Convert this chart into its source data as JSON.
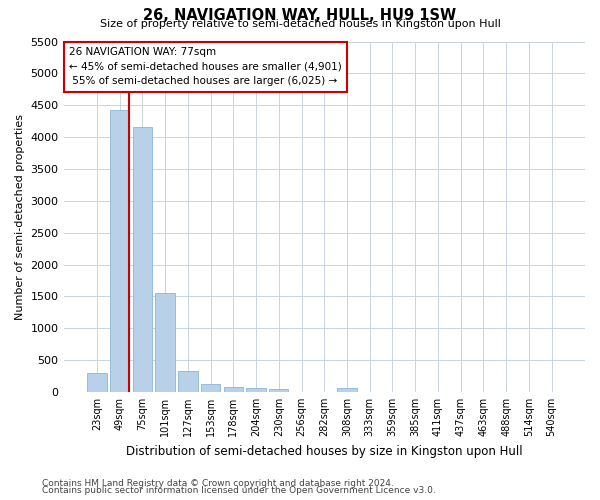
{
  "title": "26, NAVIGATION WAY, HULL, HU9 1SW",
  "subtitle": "Size of property relative to semi-detached houses in Kingston upon Hull",
  "xlabel": "Distribution of semi-detached houses by size in Kingston upon Hull",
  "ylabel": "Number of semi-detached properties",
  "footnote1": "Contains HM Land Registry data © Crown copyright and database right 2024.",
  "footnote2": "Contains public sector information licensed under the Open Government Licence v3.0.",
  "bar_color": "#b8d0e8",
  "bar_edge_color": "#7aadd4",
  "grid_color": "#c8d4e0",
  "vline_color": "#cc0000",
  "box_edge_color": "#cc0000",
  "property_label": "26 NAVIGATION WAY: 77sqm",
  "pct_smaller": 45,
  "pct_larger": 55,
  "count_smaller": 4901,
  "count_larger": 6025,
  "categories": [
    "23sqm",
    "49sqm",
    "75sqm",
    "101sqm",
    "127sqm",
    "153sqm",
    "178sqm",
    "204sqm",
    "230sqm",
    "256sqm",
    "282sqm",
    "308sqm",
    "333sqm",
    "359sqm",
    "385sqm",
    "411sqm",
    "437sqm",
    "463sqm",
    "488sqm",
    "514sqm",
    "540sqm"
  ],
  "values": [
    290,
    4420,
    4160,
    1550,
    325,
    130,
    75,
    55,
    45,
    0,
    0,
    65,
    0,
    0,
    0,
    0,
    0,
    0,
    0,
    0,
    0
  ],
  "ylim_max": 5500,
  "vline_bar_index": 1,
  "figsize": [
    6.0,
    5.0
  ],
  "dpi": 100
}
